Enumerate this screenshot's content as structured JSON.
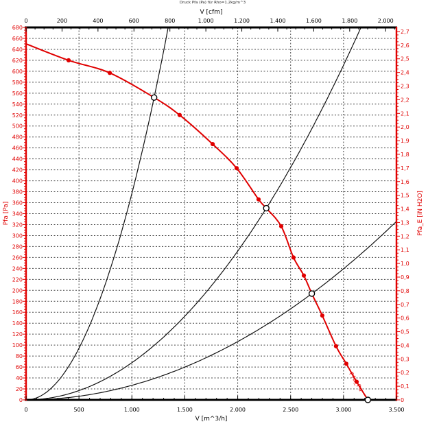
{
  "chart_data": {
    "type": "line",
    "title": "Druck Pfa (Pa) für Rho=1.2kg/m^3",
    "grid": {
      "horizontal_step_pa": 20,
      "vertical_step_m3h": 500,
      "style": "dashed"
    },
    "axes": {
      "bottom": {
        "label": "V [m^3/h]",
        "min": 0,
        "max": 3500,
        "major_step": 500,
        "minor_step": 100,
        "tick_labels": [
          "0",
          "500",
          "1.000",
          "1.500",
          "2.000",
          "2.500",
          "3.000",
          "3.500"
        ],
        "color": "#000000"
      },
      "top": {
        "label": "V [cfm]",
        "min": 0,
        "max": 2000,
        "major_step": 200,
        "minor_step": 50,
        "m3h_per_cfm": 1.699,
        "tick_labels": [
          "0",
          "200",
          "400",
          "600",
          "800",
          "1.000",
          "1.200",
          "1.400",
          "1.600",
          "1.800",
          "2.000"
        ],
        "color": "#000000"
      },
      "left": {
        "label": "Pfa [Pa]",
        "min": 0,
        "max": 680,
        "major_step": 20,
        "minor_step": 5,
        "tick_labels": [
          "0",
          "20",
          "40",
          "60",
          "80",
          "100",
          "120",
          "140",
          "160",
          "180",
          "200",
          "220",
          "240",
          "260",
          "280",
          "300",
          "320",
          "340",
          "360",
          "380",
          "400",
          "420",
          "440",
          "460",
          "480",
          "500",
          "520",
          "540",
          "560",
          "580",
          "600",
          "620",
          "640",
          "660",
          "680"
        ],
        "color": "#e00000"
      },
      "right": {
        "label": "Pfa_E [iN H2O]",
        "min": 0,
        "max": 2.7,
        "major_step": 0.1,
        "minor_step": 0.025,
        "pa_per_inh2o": 249.089,
        "tick_labels": [
          "0",
          "0,1",
          "0,2",
          "0,3",
          "0,4",
          "0,5",
          "0,6",
          "0,7",
          "0,8",
          "0,9",
          "1,0",
          "1,1",
          "1,2",
          "1,3",
          "1,4",
          "1,5",
          "1,6",
          "1,7",
          "1,8",
          "1,9",
          "2,0",
          "2,1",
          "2,2",
          "2,3",
          "2,4",
          "2,5",
          "2,6",
          "2,7"
        ],
        "color": "#e00000"
      }
    },
    "fan_curve": {
      "name": "Pfa_Pa",
      "color": "#e00000",
      "points": [
        [
          0,
          650
        ],
        [
          402,
          620
        ],
        [
          791,
          597
        ],
        [
          1210,
          552
        ],
        [
          1452,
          520
        ],
        [
          1763,
          467
        ],
        [
          1990,
          423
        ],
        [
          2197,
          366
        ],
        [
          2270,
          350
        ],
        [
          2411,
          317
        ],
        [
          2527,
          260
        ],
        [
          2625,
          227
        ],
        [
          2700,
          194
        ],
        [
          2799,
          154
        ],
        [
          2929,
          98
        ],
        [
          3026,
          66
        ],
        [
          3124,
          33
        ],
        [
          3230,
          0
        ]
      ],
      "dot_markers": [
        [
          402,
          620
        ],
        [
          791,
          597
        ],
        [
          1452,
          520
        ],
        [
          1763,
          467
        ],
        [
          1990,
          423
        ],
        [
          2197,
          366
        ],
        [
          2411,
          317
        ],
        [
          2527,
          260
        ],
        [
          2625,
          227
        ],
        [
          2799,
          154
        ],
        [
          2929,
          98
        ],
        [
          3026,
          66
        ],
        [
          3124,
          33
        ]
      ]
    },
    "system_curves": [
      {
        "name": "system-curve-steep",
        "k": 0.000377
      },
      {
        "name": "system-curve-middle",
        "k": 6.79e-05
      },
      {
        "name": "system-curve-shallow",
        "k": 2.66e-05
      }
    ],
    "operating_points": [
      [
        1210,
        552
      ],
      [
        2270,
        350
      ],
      [
        2700,
        194
      ],
      [
        3230,
        0
      ]
    ]
  }
}
